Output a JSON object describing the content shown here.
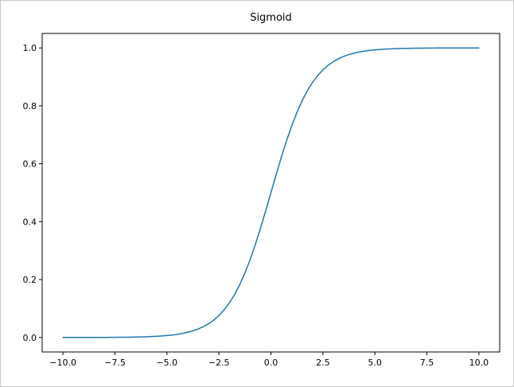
{
  "figure": {
    "background": "#ffffff",
    "border_color": "#c8c8c8",
    "axes_edge_color": "#000000",
    "line_color": "#1f77b4"
  },
  "chart_data": {
    "type": "line",
    "title": "Sigmoid",
    "xlabel": "",
    "ylabel": "",
    "xlim": [
      -11,
      11
    ],
    "ylim": [
      -0.05,
      1.05
    ],
    "grid": false,
    "legend": null,
    "x_ticks": [
      -10.0,
      -7.5,
      -5.0,
      -2.5,
      0.0,
      2.5,
      5.0,
      7.5,
      10.0
    ],
    "x_tick_labels": [
      "−10.0",
      "−7.5",
      "−5.0",
      "−2.5",
      "0.0",
      "2.5",
      "5.0",
      "7.5",
      "10.0"
    ],
    "y_ticks": [
      0.0,
      0.2,
      0.4,
      0.6,
      0.8,
      1.0
    ],
    "y_tick_labels": [
      "0.0",
      "0.2",
      "0.4",
      "0.6",
      "0.8",
      "1.0"
    ],
    "series": [
      {
        "name": "sigmoid",
        "x": [
          -10,
          -9.75,
          -9.5,
          -9.25,
          -9,
          -8.75,
          -8.5,
          -8.25,
          -8,
          -7.75,
          -7.5,
          -7.25,
          -7,
          -6.75,
          -6.5,
          -6.25,
          -6,
          -5.75,
          -5.5,
          -5.25,
          -5,
          -4.75,
          -4.5,
          -4.25,
          -4,
          -3.75,
          -3.5,
          -3.25,
          -3,
          -2.75,
          -2.5,
          -2.25,
          -2,
          -1.75,
          -1.5,
          -1.25,
          -1,
          -0.75,
          -0.5,
          -0.25,
          0,
          0.25,
          0.5,
          0.75,
          1,
          1.25,
          1.5,
          1.75,
          2,
          2.25,
          2.5,
          2.75,
          3,
          3.25,
          3.5,
          3.75,
          4,
          4.25,
          4.5,
          4.75,
          5,
          5.25,
          5.5,
          5.75,
          6,
          6.25,
          6.5,
          6.75,
          7,
          7.25,
          7.5,
          7.75,
          8,
          8.25,
          8.5,
          8.75,
          9,
          9.25,
          9.5,
          9.75,
          10
        ],
        "y": [
          5e-05,
          6e-05,
          7e-05,
          0.0001,
          0.00012,
          0.00016,
          0.0002,
          0.00026,
          0.00034,
          0.00043,
          0.00055,
          0.00071,
          0.00091,
          0.00117,
          0.0015,
          0.00193,
          0.00247,
          0.00317,
          0.00407,
          0.00522,
          0.00669,
          0.00858,
          0.01099,
          0.01406,
          0.01799,
          0.02298,
          0.02931,
          0.03733,
          0.04743,
          0.06009,
          0.07586,
          0.09535,
          0.1192,
          0.14805,
          0.18243,
          0.2227,
          0.26894,
          0.32082,
          0.37754,
          0.43782,
          0.5,
          0.56218,
          0.62246,
          0.67918,
          0.73106,
          0.7773,
          0.81757,
          0.85195,
          0.8808,
          0.90465,
          0.92414,
          0.93991,
          0.95257,
          0.96267,
          0.97069,
          0.97702,
          0.98201,
          0.98594,
          0.98901,
          0.99142,
          0.99331,
          0.99478,
          0.99593,
          0.99683,
          0.99753,
          0.99807,
          0.9985,
          0.99883,
          0.99909,
          0.99929,
          0.99945,
          0.99957,
          0.99966,
          0.99974,
          0.9998,
          0.99984,
          0.99988,
          0.9999,
          0.99993,
          0.99994,
          0.99995
        ]
      }
    ]
  }
}
